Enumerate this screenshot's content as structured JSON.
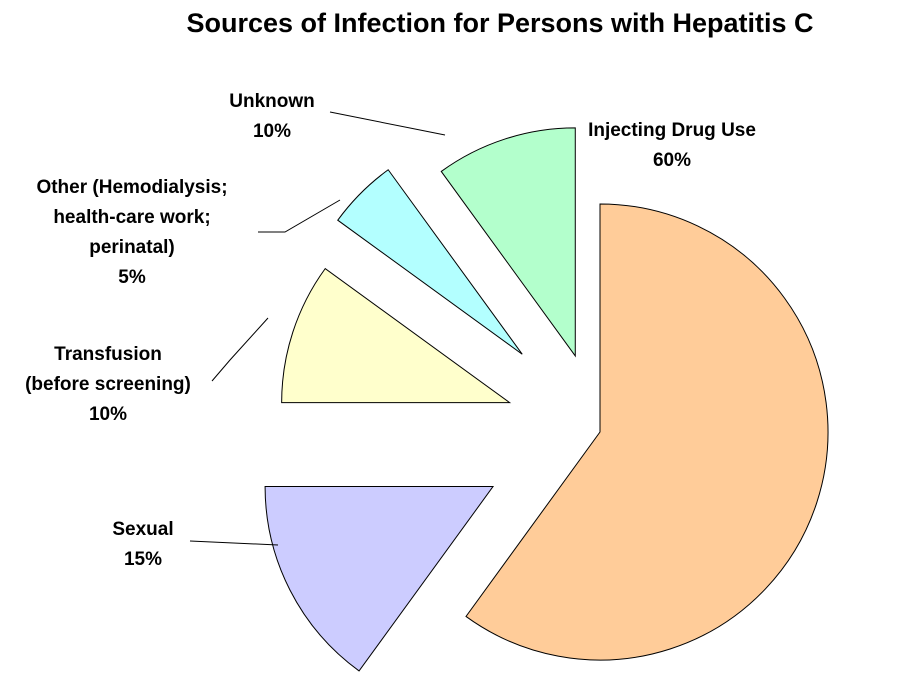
{
  "chart_data": {
    "type": "pie",
    "title": "Sources of Infection for Persons with Hepatitis C",
    "slices": [
      {
        "label": [
          "Injecting Drug Use"
        ],
        "value": 60,
        "value_label": "60%",
        "color": "#FFCC99"
      },
      {
        "label": [
          "Sexual"
        ],
        "value": 15,
        "value_label": "15%",
        "color": "#CCCCFF"
      },
      {
        "label": [
          "Transfusion",
          "(before screening)"
        ],
        "value": 10,
        "value_label": "10%",
        "color": "#FFFFCC"
      },
      {
        "label": [
          "Other (Hemodialysis;",
          "health-care work;",
          "perinatal)"
        ],
        "value": 5,
        "value_label": "5%",
        "color": "#B3FFFF"
      },
      {
        "label": [
          "Unknown"
        ],
        "value": 10,
        "value_label": "10%",
        "color": "#B3FFCC"
      }
    ],
    "legend": "none",
    "exploded": true
  }
}
